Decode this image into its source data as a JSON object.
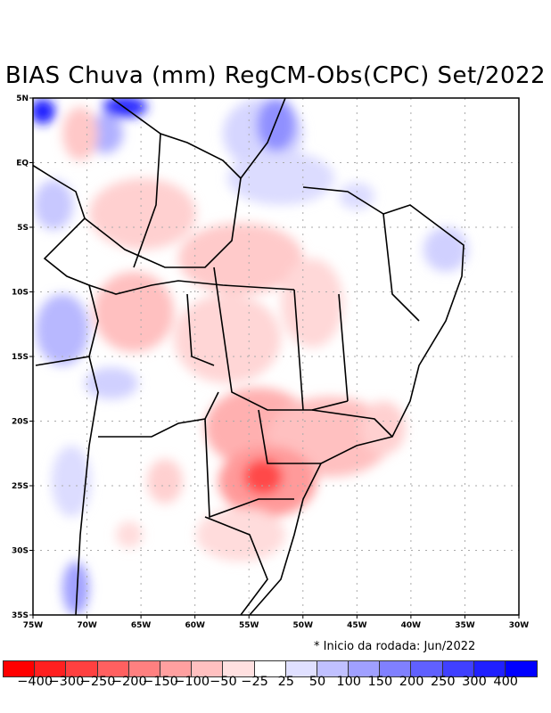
{
  "title": "BIAS Chuva (mm) RegCM-Obs(CPC) Set/2022",
  "note": "* Inicio da rodada: Jun/2022",
  "map": {
    "lon_range": [
      -75,
      -30
    ],
    "lat_range": [
      -35,
      5
    ],
    "lon_ticks": [
      "75W",
      "70W",
      "65W",
      "60W",
      "55W",
      "50W",
      "45W",
      "40W",
      "35W",
      "30W"
    ],
    "lat_ticks": [
      "5N",
      "EQ",
      "5S",
      "10S",
      "15S",
      "20S",
      "25S",
      "30S",
      "35S"
    ]
  },
  "colorbar": {
    "colors": [
      "#ff0000",
      "#ff2020",
      "#ff4040",
      "#ff6060",
      "#ff8080",
      "#ffa0a0",
      "#ffc0c0",
      "#ffe0e0",
      "#ffffff",
      "#e0e0ff",
      "#c0c0ff",
      "#a0a0ff",
      "#8080ff",
      "#6060ff",
      "#4040ff",
      "#2020ff",
      "#0000ff"
    ],
    "labels": [
      "-400",
      "-300",
      "-250",
      "-200",
      "-150",
      "-100",
      "-50",
      "-25",
      "25",
      "50",
      "100",
      "150",
      "200",
      "250",
      "300",
      "400"
    ]
  }
}
